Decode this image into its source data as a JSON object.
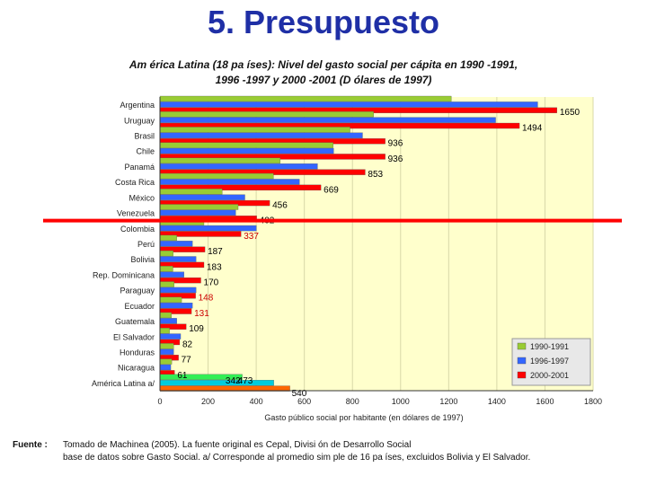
{
  "slide": {
    "title": "5. Presupuesto"
  },
  "chart_data": {
    "type": "bar",
    "orientation": "horizontal",
    "title": "Am érica Latina (18 pa íses): Nivel del gasto social per cápita en 1990 -1991, 1996 -1997 y 2000 -2001 (D ólares de 1997)",
    "title_lines": [
      "Am érica Latina (18 pa íses): Nivel del gasto social per cápita en 1990 -1991,",
      "1996 -1997 y 2000 -2001 (D ólares de 1997)"
    ],
    "xlabel": "Gasto público social por habitante (en dólares de 1997)",
    "xlim": [
      0,
      1800
    ],
    "xticks": [
      0,
      200,
      400,
      600,
      800,
      1000,
      1200,
      1400,
      1600,
      1800
    ],
    "xtick_labels": [
      "0",
      "200",
      "400",
      "600",
      "800",
      "1000",
      "1200",
      "1400",
      "1600",
      "1800"
    ],
    "grid": false,
    "legend_position": "bottom-right",
    "categories": [
      "Argentina",
      "Uruguay",
      "Brasil",
      "Chile",
      "Panamá",
      "Costa Rica",
      "México",
      "Venezuela",
      "Colombia",
      "Perú",
      "Bolivia",
      "Rep. Dominicana",
      "Paraguay",
      "Ecuador",
      "Guatemala",
      "El Salvador",
      "Honduras",
      "Nicaragua",
      "América Latina a/"
    ],
    "series": [
      {
        "name": "1990-1991",
        "color": "#99cc33",
        "values": [
          1211,
          888,
          790,
          720,
          500,
          472,
          259,
          325,
          183,
          70,
          55,
          54,
          59,
          90,
          48,
          40,
          57,
          49,
          342
        ]
      },
      {
        "name": "1996-1997",
        "color": "#3366ff",
        "values": [
          1570,
          1395,
          842,
          722,
          655,
          580,
          353,
          315,
          401,
          135,
          150,
          100,
          150,
          135,
          70,
          86,
          57,
          45,
          473
        ]
      },
      {
        "name": "2000-2001",
        "color": "#ff0000",
        "values": [
          1650,
          1494,
          936,
          936,
          853,
          669,
          456,
          402,
          337,
          187,
          183,
          170,
          148,
          131,
          109,
          82,
          77,
          61,
          540
        ]
      }
    ],
    "value_labels": [
      "1650",
      "1494",
      "936",
      "936",
      "853",
      "669",
      "456",
      "402",
      "337",
      "187",
      "183",
      "170",
      "148",
      "131",
      "109",
      "82",
      "77",
      "61",
      "540"
    ],
    "value_label_colors": [
      "#000000",
      "#000000",
      "#000000",
      "#000000",
      "#000000",
      "#000000",
      "#000000",
      "#000000",
      "#cc0000",
      "#000000",
      "#000000",
      "#000000",
      "#cc0000",
      "#cc0000",
      "#000000",
      "#000000",
      "#000000",
      "#000000",
      "#000000"
    ],
    "highlight_series": [
      {
        "name": "1990-1991",
        "color": "#33ee55",
        "label": "342"
      },
      {
        "name": "1996-1997",
        "color": "#00ccdd",
        "label": "473"
      },
      {
        "name": "2000-2001",
        "color": "#ff6600",
        "label": "540"
      }
    ],
    "annotation": {
      "type": "horizontal-line",
      "color": "#ff0000",
      "between": [
        "Venezuela",
        "Colombia"
      ]
    }
  },
  "source": {
    "label": "Fuente :",
    "line1": "Tomado de Machinea (2005). La fuente original es Cepal, Divisi ón de Desarrollo Social",
    "line2": "base de datos sobre Gasto Social. a/ Corresponde al promedio sim ple de 16 pa íses, excluidos Bolivia y El Salvador."
  }
}
